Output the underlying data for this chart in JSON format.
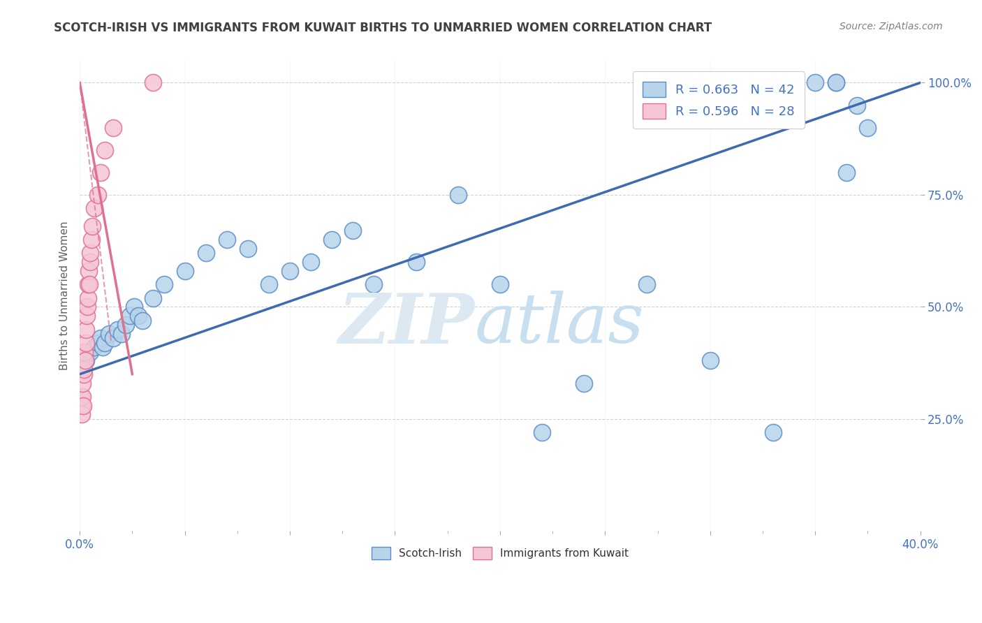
{
  "title": "SCOTCH-IRISH VS IMMIGRANTS FROM KUWAIT BIRTHS TO UNMARRIED WOMEN CORRELATION CHART",
  "source": "Source: ZipAtlas.com",
  "ylabel": "Births to Unmarried Women",
  "blue_color": "#b8d4ea",
  "blue_edge_color": "#5b8dc8",
  "blue_line_color": "#3d6ab0",
  "pink_color": "#f5c6d5",
  "pink_edge_color": "#e07090",
  "pink_line_color": "#e07090",
  "axis_tick_color": "#4472c4",
  "grid_color": "#d0d0d0",
  "title_color": "#404040",
  "source_color": "#808080",
  "ylabel_color": "#606060",
  "watermark_color": "#dce8f2",
  "xlim": [
    0.0,
    40.0
  ],
  "ylim": [
    0.0,
    105.0
  ],
  "scotch_irish_x": [
    0.3,
    0.5,
    0.7,
    0.9,
    1.0,
    1.1,
    1.2,
    1.4,
    1.6,
    1.8,
    2.0,
    2.2,
    2.4,
    2.6,
    2.8,
    3.0,
    3.5,
    4.0,
    5.0,
    6.0,
    7.0,
    8.0,
    9.0,
    10.0,
    11.0,
    12.0,
    13.0,
    14.0,
    16.0,
    18.0,
    20.0,
    22.0,
    24.0,
    27.0,
    30.0,
    33.0,
    35.0,
    36.0,
    36.0,
    36.5,
    37.0,
    37.5
  ],
  "scotch_irish_y": [
    38.0,
    40.0,
    41.0,
    42.0,
    43.0,
    41.0,
    42.0,
    44.0,
    43.0,
    45.0,
    44.0,
    46.0,
    48.0,
    50.0,
    48.0,
    47.0,
    52.0,
    55.0,
    58.0,
    62.0,
    65.0,
    63.0,
    55.0,
    58.0,
    60.0,
    65.0,
    67.0,
    55.0,
    60.0,
    75.0,
    55.0,
    22.0,
    33.0,
    55.0,
    38.0,
    22.0,
    100.0,
    100.0,
    100.0,
    80.0,
    95.0,
    90.0
  ],
  "kuwait_x": [
    0.05,
    0.08,
    0.1,
    0.12,
    0.14,
    0.16,
    0.18,
    0.2,
    0.22,
    0.25,
    0.28,
    0.3,
    0.33,
    0.35,
    0.38,
    0.4,
    0.43,
    0.45,
    0.48,
    0.5,
    0.55,
    0.6,
    0.7,
    0.85,
    1.0,
    1.2,
    1.6,
    3.5
  ],
  "kuwait_y": [
    30.0,
    28.0,
    26.0,
    30.0,
    33.0,
    28.0,
    35.0,
    36.0,
    40.0,
    38.0,
    42.0,
    45.0,
    48.0,
    50.0,
    52.0,
    55.0,
    58.0,
    55.0,
    60.0,
    62.0,
    65.0,
    68.0,
    72.0,
    75.0,
    80.0,
    85.0,
    90.0,
    100.0
  ],
  "si_trend_x0": 0.0,
  "si_trend_y0": 35.0,
  "si_trend_x1": 40.0,
  "si_trend_y1": 100.0,
  "kw_trend_x0": 0.0,
  "kw_trend_y0": 100.0,
  "kw_trend_x1": 2.5,
  "kw_trend_y1": 35.0,
  "kw_dash_x0": 0.0,
  "kw_dash_y0": 100.0,
  "kw_dash_x1": 1.5,
  "kw_dash_y1": 42.0
}
